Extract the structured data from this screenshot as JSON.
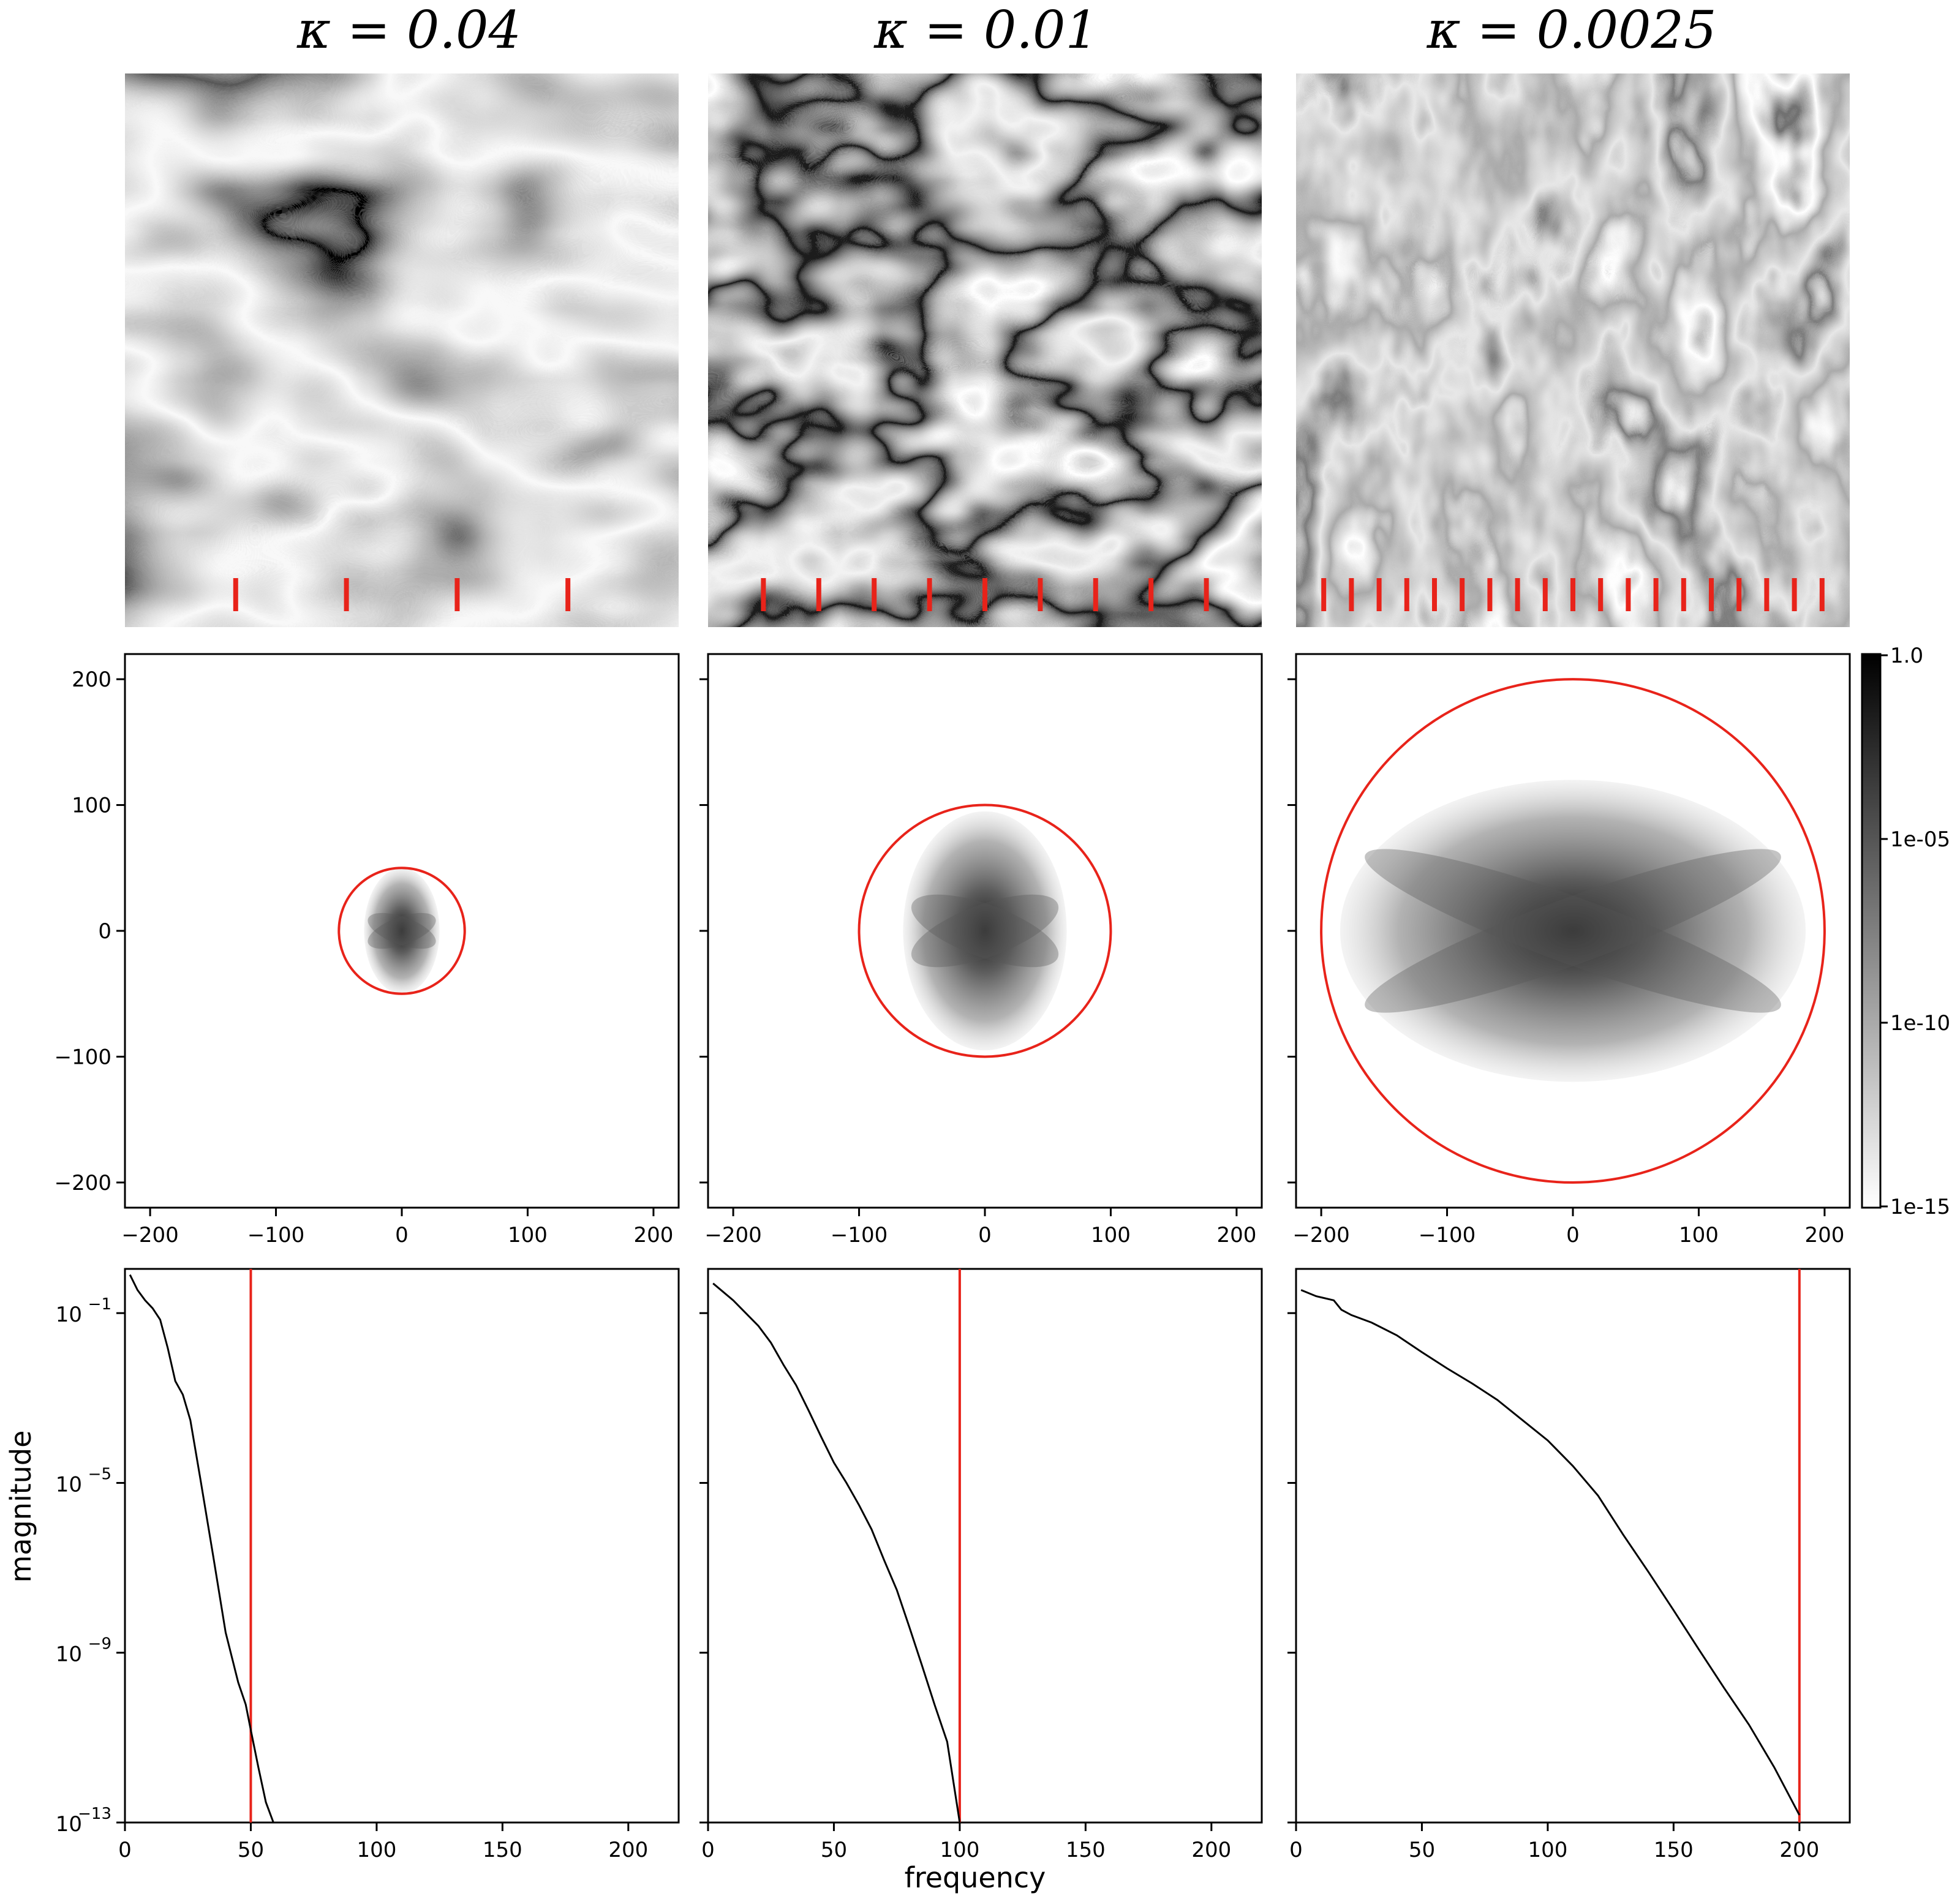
{
  "colors": {
    "line": "#000000",
    "marker": "#e8231a",
    "axes": "#000000",
    "background": "#ffffff"
  },
  "titles": [
    "κ = 0.04",
    "κ = 0.01",
    "κ = 0.0025"
  ],
  "chart_data": [
    {
      "panel": "field-images",
      "type": "heatmap",
      "colormap": "grayscale",
      "columns": [
        {
          "title": "κ = 0.04",
          "red_marker_count": 4
        },
        {
          "title": "κ = 0.01",
          "red_marker_count": 9
        },
        {
          "title": "κ = 0.0025",
          "red_marker_count": 19
        }
      ]
    },
    {
      "panel": "2d-spectra",
      "type": "heatmap",
      "colormap": "grayscale-log",
      "xlim": [
        -220,
        220
      ],
      "ylim": [
        -220,
        220
      ],
      "xticks": [
        "−200",
        "−100",
        "0",
        "100",
        "200"
      ],
      "yticks": [
        "200",
        "100",
        "0",
        "−100",
        "−200"
      ],
      "colorbar": {
        "scale": "log",
        "range": [
          1e-15,
          1.0
        ],
        "ticks": [
          "1.0",
          "1e-05",
          "1e-10",
          "1e-15"
        ]
      },
      "columns": [
        {
          "circle_radius": 50,
          "spectral_half_width": 30,
          "spectral_half_height": 50
        },
        {
          "circle_radius": 100,
          "spectral_half_width": 65,
          "spectral_half_height": 95
        },
        {
          "circle_radius": 200,
          "spectral_half_width": 185,
          "spectral_half_height": 120
        }
      ]
    },
    {
      "panel": "radial-spectra",
      "type": "line",
      "xlabel": "frequency",
      "ylabel": "magnitude",
      "xlim": [
        0,
        220
      ],
      "ylim": [
        1e-13,
        1.1
      ],
      "yscale": "log",
      "xticks": [
        "0",
        "50",
        "100",
        "150",
        "200"
      ],
      "yticks": [
        {
          "base": "10",
          "exp": "−1"
        },
        {
          "base": "10",
          "exp": "−5"
        },
        {
          "base": "10",
          "exp": "−9"
        },
        {
          "base": "10",
          "exp": "−13"
        }
      ],
      "series": [
        {
          "cutoff": 50,
          "x": [
            2,
            5,
            8,
            11,
            14,
            17,
            20,
            23,
            26,
            30,
            35,
            40,
            45,
            48,
            50,
            53,
            56,
            59
          ],
          "y": [
            0.8,
            0.35,
            0.2,
            0.13,
            0.07,
            0.015,
            0.0025,
            0.0012,
            0.0003,
            1.2e-05,
            2e-07,
            3e-09,
            2e-10,
            6e-11,
            1.5e-11,
            2e-12,
            3e-13,
            1e-13
          ]
        },
        {
          "cutoff": 100,
          "x": [
            2,
            10,
            15,
            20,
            25,
            30,
            35,
            40,
            45,
            50,
            55,
            60,
            65,
            70,
            75,
            80,
            85,
            90,
            95,
            100
          ],
          "y": [
            0.5,
            0.2,
            0.1,
            0.05,
            0.02,
            0.006,
            0.002,
            0.0005,
            0.00012,
            3e-05,
            1e-05,
            3e-06,
            8e-07,
            1.5e-07,
            3e-08,
            4e-09,
            5e-10,
            6e-11,
            8e-12,
            1e-13
          ]
        },
        {
          "cutoff": 200,
          "x": [
            2,
            8,
            15,
            18,
            22,
            30,
            40,
            50,
            60,
            70,
            80,
            90,
            100,
            110,
            120,
            130,
            140,
            150,
            160,
            170,
            180,
            190,
            200
          ],
          "y": [
            0.35,
            0.25,
            0.2,
            0.12,
            0.09,
            0.06,
            0.03,
            0.012,
            0.005,
            0.0022,
            0.0009,
            0.0003,
            0.0001,
            2.5e-05,
            5e-06,
            6e-07,
            8e-08,
            1e-08,
            1.2e-09,
            1.5e-10,
            2e-11,
            2e-12,
            1.5e-13
          ]
        }
      ]
    }
  ]
}
